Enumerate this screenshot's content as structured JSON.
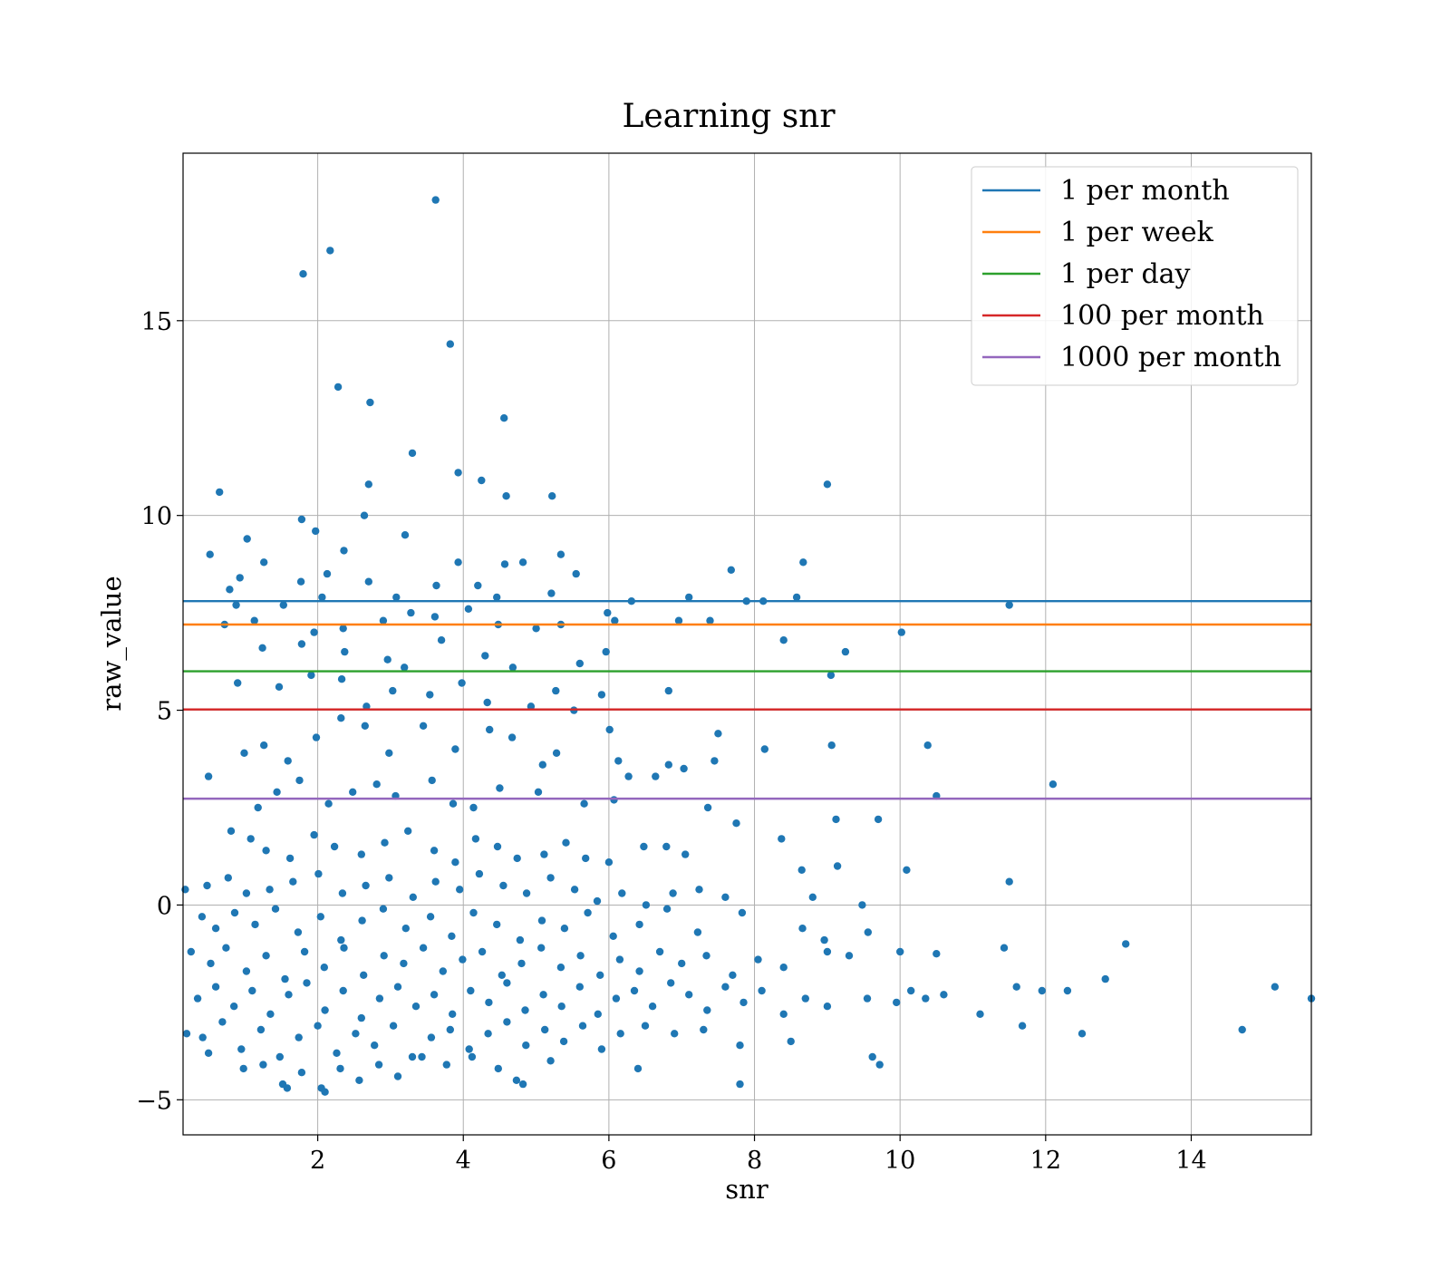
{
  "chart_data": {
    "type": "scatter",
    "title": "Learning snr",
    "xlabel": "snr",
    "ylabel": "raw_value",
    "xlim": [
      0.15,
      15.65
    ],
    "ylim": [
      -5.9,
      19.3
    ],
    "xticks": [
      2,
      4,
      6,
      8,
      10,
      12,
      14
    ],
    "yticks": [
      -5,
      0,
      5,
      10,
      15
    ],
    "ytick_labels": [
      "−5",
      "0",
      "5",
      "10",
      "15"
    ],
    "grid": true,
    "legend_position": "top-right",
    "point_color": "#1f77b4",
    "thresholds": [
      {
        "name": "1 per month",
        "value": 7.8,
        "color": "#1f77b4"
      },
      {
        "name": "1 per week",
        "value": 7.2,
        "color": "#ff7f0e"
      },
      {
        "name": "1 per day",
        "value": 6.0,
        "color": "#2ca02c"
      },
      {
        "name": "100 per month",
        "value": 5.02,
        "color": "#d62728"
      },
      {
        "name": "1000 per month",
        "value": 2.73,
        "color": "#9467bd"
      }
    ],
    "points": [
      [
        3.62,
        18.1
      ],
      [
        2.17,
        16.8
      ],
      [
        1.8,
        16.2
      ],
      [
        3.82,
        14.4
      ],
      [
        2.28,
        13.3
      ],
      [
        2.72,
        12.9
      ],
      [
        4.56,
        12.5
      ],
      [
        3.3,
        11.6
      ],
      [
        3.93,
        11.1
      ],
      [
        4.25,
        10.9
      ],
      [
        2.7,
        10.8
      ],
      [
        0.65,
        10.6
      ],
      [
        4.59,
        10.5
      ],
      [
        5.22,
        10.5
      ],
      [
        9.0,
        10.8
      ],
      [
        2.64,
        10.0
      ],
      [
        1.78,
        9.9
      ],
      [
        1.97,
        9.6
      ],
      [
        1.03,
        9.4
      ],
      [
        3.2,
        9.5
      ],
      [
        0.52,
        9.0
      ],
      [
        2.36,
        9.1
      ],
      [
        5.34,
        9.0
      ],
      [
        0.93,
        8.4
      ],
      [
        1.26,
        8.8
      ],
      [
        4.82,
        8.8
      ],
      [
        8.67,
        8.8
      ],
      [
        1.77,
        8.3
      ],
      [
        3.93,
        8.8
      ],
      [
        4.57,
        8.75
      ],
      [
        2.13,
        8.5
      ],
      [
        5.55,
        8.5
      ],
      [
        7.68,
        8.6
      ],
      [
        4.2,
        8.2
      ],
      [
        3.63,
        8.2
      ],
      [
        0.79,
        8.1
      ],
      [
        2.7,
        8.3
      ],
      [
        1.53,
        7.7
      ],
      [
        2.06,
        7.9
      ],
      [
        3.08,
        7.9
      ],
      [
        4.46,
        7.9
      ],
      [
        5.21,
        8.0
      ],
      [
        8.58,
        7.9
      ],
      [
        7.1,
        7.9
      ],
      [
        8.12,
        7.8
      ],
      [
        7.89,
        7.8
      ],
      [
        6.31,
        7.8
      ],
      [
        11.5,
        7.7
      ],
      [
        0.72,
        7.2
      ],
      [
        1.13,
        7.3
      ],
      [
        0.88,
        7.7
      ],
      [
        1.95,
        7.0
      ],
      [
        2.35,
        7.1
      ],
      [
        2.9,
        7.3
      ],
      [
        3.28,
        7.5
      ],
      [
        3.61,
        7.4
      ],
      [
        4.07,
        7.6
      ],
      [
        4.48,
        7.2
      ],
      [
        5.0,
        7.1
      ],
      [
        5.34,
        7.2
      ],
      [
        5.98,
        7.5
      ],
      [
        6.08,
        7.3
      ],
      [
        6.96,
        7.3
      ],
      [
        7.39,
        7.3
      ],
      [
        10.02,
        7.0
      ],
      [
        1.24,
        6.6
      ],
      [
        1.78,
        6.7
      ],
      [
        2.37,
        6.5
      ],
      [
        2.96,
        6.3
      ],
      [
        3.19,
        6.1
      ],
      [
        3.7,
        6.8
      ],
      [
        4.3,
        6.4
      ],
      [
        4.68,
        6.1
      ],
      [
        5.6,
        6.2
      ],
      [
        5.96,
        6.5
      ],
      [
        8.4,
        6.8
      ],
      [
        9.25,
        6.5
      ],
      [
        0.9,
        5.7
      ],
      [
        1.47,
        5.6
      ],
      [
        1.91,
        5.9
      ],
      [
        2.33,
        5.8
      ],
      [
        2.67,
        5.1
      ],
      [
        3.03,
        5.5
      ],
      [
        3.54,
        5.4
      ],
      [
        3.98,
        5.7
      ],
      [
        4.33,
        5.2
      ],
      [
        4.93,
        5.1
      ],
      [
        5.27,
        5.5
      ],
      [
        5.9,
        5.4
      ],
      [
        6.82,
        5.5
      ],
      [
        9.05,
        5.9
      ],
      [
        0.99,
        3.9
      ],
      [
        1.26,
        4.1
      ],
      [
        1.59,
        3.7
      ],
      [
        1.98,
        4.3
      ],
      [
        2.32,
        4.8
      ],
      [
        2.65,
        4.6
      ],
      [
        2.98,
        3.9
      ],
      [
        3.45,
        4.6
      ],
      [
        3.89,
        4.0
      ],
      [
        4.36,
        4.5
      ],
      [
        4.67,
        4.3
      ],
      [
        5.09,
        3.6
      ],
      [
        5.52,
        5.0
      ],
      [
        6.01,
        4.5
      ],
      [
        6.13,
        3.7
      ],
      [
        6.27,
        3.3
      ],
      [
        6.64,
        3.3
      ],
      [
        6.82,
        3.6
      ],
      [
        7.03,
        3.5
      ],
      [
        7.45,
        3.7
      ],
      [
        7.5,
        4.4
      ],
      [
        8.14,
        4.0
      ],
      [
        9.06,
        4.1
      ],
      [
        10.38,
        4.1
      ],
      [
        12.1,
        3.1
      ],
      [
        0.5,
        3.3
      ],
      [
        1.18,
        2.5
      ],
      [
        1.44,
        2.9
      ],
      [
        1.75,
        3.2
      ],
      [
        2.15,
        2.6
      ],
      [
        2.48,
        2.9
      ],
      [
        2.81,
        3.1
      ],
      [
        3.07,
        2.8
      ],
      [
        3.57,
        3.2
      ],
      [
        3.86,
        2.6
      ],
      [
        4.14,
        2.5
      ],
      [
        4.5,
        3.0
      ],
      [
        5.03,
        2.9
      ],
      [
        5.28,
        3.9
      ],
      [
        5.66,
        2.6
      ],
      [
        6.07,
        2.7
      ],
      [
        7.36,
        2.5
      ],
      [
        9.12,
        2.2
      ],
      [
        9.7,
        2.2
      ],
      [
        10.5,
        2.8
      ],
      [
        0.81,
        1.9
      ],
      [
        1.08,
        1.7
      ],
      [
        1.29,
        1.4
      ],
      [
        1.62,
        1.2
      ],
      [
        1.95,
        1.8
      ],
      [
        2.23,
        1.5
      ],
      [
        2.6,
        1.3
      ],
      [
        2.92,
        1.6
      ],
      [
        3.24,
        1.9
      ],
      [
        3.6,
        1.4
      ],
      [
        3.89,
        1.1
      ],
      [
        4.17,
        1.7
      ],
      [
        4.47,
        1.5
      ],
      [
        4.74,
        1.2
      ],
      [
        5.11,
        1.3
      ],
      [
        5.41,
        1.6
      ],
      [
        5.68,
        1.2
      ],
      [
        6.0,
        1.1
      ],
      [
        6.48,
        1.5
      ],
      [
        6.79,
        1.5
      ],
      [
        7.05,
        1.3
      ],
      [
        7.75,
        2.1
      ],
      [
        8.37,
        1.7
      ],
      [
        9.14,
        1.0
      ],
      [
        10.09,
        0.9
      ],
      [
        0.48,
        0.5
      ],
      [
        0.77,
        0.7
      ],
      [
        1.02,
        0.3
      ],
      [
        1.34,
        0.4
      ],
      [
        1.66,
        0.6
      ],
      [
        2.01,
        0.8
      ],
      [
        2.34,
        0.3
      ],
      [
        2.66,
        0.5
      ],
      [
        2.98,
        0.7
      ],
      [
        3.31,
        0.2
      ],
      [
        3.62,
        0.6
      ],
      [
        3.95,
        0.4
      ],
      [
        4.22,
        0.8
      ],
      [
        4.55,
        0.5
      ],
      [
        4.87,
        0.3
      ],
      [
        5.2,
        0.7
      ],
      [
        5.53,
        0.4
      ],
      [
        5.84,
        0.1
      ],
      [
        6.18,
        0.3
      ],
      [
        6.51,
        0.0
      ],
      [
        6.88,
        0.3
      ],
      [
        7.24,
        0.4
      ],
      [
        7.6,
        0.2
      ],
      [
        8.65,
        0.9
      ],
      [
        8.8,
        0.2
      ],
      [
        9.48,
        0.0
      ],
      [
        11.5,
        0.6
      ],
      [
        0.18,
        0.4
      ],
      [
        0.41,
        -0.3
      ],
      [
        0.6,
        -0.6
      ],
      [
        0.86,
        -0.2
      ],
      [
        1.14,
        -0.5
      ],
      [
        1.42,
        -0.1
      ],
      [
        1.73,
        -0.7
      ],
      [
        2.04,
        -0.3
      ],
      [
        2.32,
        -0.9
      ],
      [
        2.61,
        -0.4
      ],
      [
        2.9,
        -0.1
      ],
      [
        3.21,
        -0.6
      ],
      [
        3.55,
        -0.3
      ],
      [
        3.84,
        -0.8
      ],
      [
        4.14,
        -0.2
      ],
      [
        4.46,
        -0.5
      ],
      [
        4.78,
        -0.9
      ],
      [
        5.08,
        -0.4
      ],
      [
        5.39,
        -0.6
      ],
      [
        5.71,
        -0.2
      ],
      [
        6.06,
        -0.8
      ],
      [
        6.42,
        -0.5
      ],
      [
        6.8,
        -0.1
      ],
      [
        7.22,
        -0.7
      ],
      [
        7.83,
        -0.2
      ],
      [
        8.66,
        -0.6
      ],
      [
        8.96,
        -0.9
      ],
      [
        9.56,
        -0.7
      ],
      [
        0.26,
        -1.2
      ],
      [
        0.53,
        -1.5
      ],
      [
        0.74,
        -1.1
      ],
      [
        1.02,
        -1.7
      ],
      [
        1.29,
        -1.3
      ],
      [
        1.55,
        -1.9
      ],
      [
        1.82,
        -1.2
      ],
      [
        2.09,
        -1.6
      ],
      [
        2.36,
        -1.1
      ],
      [
        2.63,
        -1.8
      ],
      [
        2.91,
        -1.3
      ],
      [
        3.18,
        -1.5
      ],
      [
        3.45,
        -1.1
      ],
      [
        3.72,
        -1.7
      ],
      [
        3.99,
        -1.4
      ],
      [
        4.26,
        -1.2
      ],
      [
        4.53,
        -1.8
      ],
      [
        4.8,
        -1.5
      ],
      [
        5.07,
        -1.1
      ],
      [
        5.34,
        -1.6
      ],
      [
        5.61,
        -1.3
      ],
      [
        5.88,
        -1.8
      ],
      [
        6.15,
        -1.4
      ],
      [
        6.42,
        -1.7
      ],
      [
        6.7,
        -1.2
      ],
      [
        7.0,
        -1.5
      ],
      [
        7.34,
        -1.3
      ],
      [
        7.7,
        -1.8
      ],
      [
        8.05,
        -1.4
      ],
      [
        8.4,
        -1.6
      ],
      [
        9.0,
        -1.2
      ],
      [
        9.3,
        -1.3
      ],
      [
        10.0,
        -1.2
      ],
      [
        10.5,
        -1.25
      ],
      [
        11.43,
        -1.1
      ],
      [
        13.1,
        -1.0
      ],
      [
        0.35,
        -2.4
      ],
      [
        0.6,
        -2.1
      ],
      [
        0.85,
        -2.6
      ],
      [
        1.1,
        -2.2
      ],
      [
        1.35,
        -2.8
      ],
      [
        1.6,
        -2.3
      ],
      [
        1.85,
        -2.0
      ],
      [
        2.1,
        -2.7
      ],
      [
        2.35,
        -2.2
      ],
      [
        2.6,
        -2.9
      ],
      [
        2.85,
        -2.4
      ],
      [
        3.1,
        -2.1
      ],
      [
        3.35,
        -2.6
      ],
      [
        3.6,
        -2.3
      ],
      [
        3.85,
        -2.8
      ],
      [
        4.1,
        -2.2
      ],
      [
        4.35,
        -2.5
      ],
      [
        4.6,
        -2.0
      ],
      [
        4.85,
        -2.7
      ],
      [
        5.1,
        -2.3
      ],
      [
        5.35,
        -2.6
      ],
      [
        5.6,
        -2.1
      ],
      [
        5.85,
        -2.8
      ],
      [
        6.1,
        -2.4
      ],
      [
        6.35,
        -2.2
      ],
      [
        6.6,
        -2.6
      ],
      [
        6.85,
        -2.0
      ],
      [
        7.1,
        -2.3
      ],
      [
        7.35,
        -2.7
      ],
      [
        7.6,
        -2.1
      ],
      [
        7.85,
        -2.5
      ],
      [
        8.1,
        -2.2
      ],
      [
        8.4,
        -2.8
      ],
      [
        8.7,
        -2.4
      ],
      [
        9.0,
        -2.6
      ],
      [
        9.55,
        -2.4
      ],
      [
        9.95,
        -2.5
      ],
      [
        10.15,
        -2.2
      ],
      [
        10.35,
        -2.4
      ],
      [
        10.6,
        -2.3
      ],
      [
        11.1,
        -2.8
      ],
      [
        11.6,
        -2.1
      ],
      [
        11.95,
        -2.2
      ],
      [
        12.3,
        -2.2
      ],
      [
        12.82,
        -1.9
      ],
      [
        15.15,
        -2.1
      ],
      [
        15.65,
        -2.4
      ],
      [
        0.42,
        -3.4
      ],
      [
        0.69,
        -3.0
      ],
      [
        0.95,
        -3.7
      ],
      [
        1.22,
        -3.2
      ],
      [
        1.48,
        -3.9
      ],
      [
        1.74,
        -3.4
      ],
      [
        2.0,
        -3.1
      ],
      [
        2.26,
        -3.8
      ],
      [
        2.52,
        -3.3
      ],
      [
        2.78,
        -3.6
      ],
      [
        3.04,
        -3.1
      ],
      [
        3.3,
        -3.9
      ],
      [
        3.56,
        -3.4
      ],
      [
        3.82,
        -3.2
      ],
      [
        4.08,
        -3.7
      ],
      [
        4.34,
        -3.3
      ],
      [
        4.6,
        -3.0
      ],
      [
        4.86,
        -3.6
      ],
      [
        5.12,
        -3.2
      ],
      [
        5.38,
        -3.5
      ],
      [
        5.64,
        -3.1
      ],
      [
        5.9,
        -3.7
      ],
      [
        6.16,
        -3.3
      ],
      [
        6.5,
        -3.1
      ],
      [
        6.9,
        -3.3
      ],
      [
        7.3,
        -3.2
      ],
      [
        7.8,
        -3.6
      ],
      [
        8.5,
        -3.5
      ],
      [
        11.68,
        -3.1
      ],
      [
        12.5,
        -3.3
      ],
      [
        14.7,
        -3.2
      ],
      [
        0.2,
        -3.3
      ],
      [
        0.5,
        -3.8
      ],
      [
        0.98,
        -4.2
      ],
      [
        1.25,
        -4.1
      ],
      [
        1.52,
        -4.6
      ],
      [
        1.78,
        -4.3
      ],
      [
        2.05,
        -4.7
      ],
      [
        2.31,
        -4.2
      ],
      [
        2.57,
        -4.5
      ],
      [
        2.84,
        -4.1
      ],
      [
        3.1,
        -4.4
      ],
      [
        3.43,
        -3.9
      ],
      [
        3.77,
        -4.1
      ],
      [
        4.12,
        -3.9
      ],
      [
        4.48,
        -4.2
      ],
      [
        4.82,
        -4.6
      ],
      [
        5.2,
        -4.0
      ],
      [
        6.4,
        -4.2
      ],
      [
        7.8,
        -4.6
      ],
      [
        9.62,
        -3.9
      ],
      [
        9.72,
        -4.1
      ],
      [
        2.1,
        -4.8
      ],
      [
        1.58,
        -4.7
      ],
      [
        4.73,
        -4.5
      ]
    ]
  }
}
